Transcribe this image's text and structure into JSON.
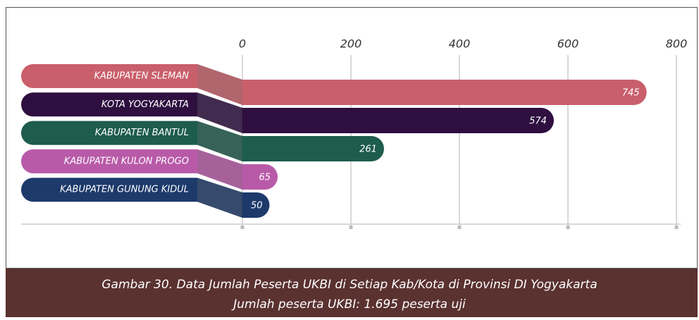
{
  "chart_data": {
    "type": "bar",
    "orientation": "horizontal",
    "categories": [
      "KABUPATEN SLEMAN",
      "KOTA YOGYAKARTA",
      "KABUPATEN BANTUL",
      "KABUPATEN KULON PROGO",
      "KABUPATEN GUNUNG KIDUL"
    ],
    "values": [
      745,
      574,
      261,
      65,
      50
    ],
    "colors": [
      "#c95f6b",
      "#2e0f3f",
      "#1e5c4e",
      "#b85aa8",
      "#1d3a6b"
    ],
    "xlim": [
      0,
      800
    ],
    "xticks": [
      0,
      200,
      400,
      600,
      800
    ],
    "grid": true,
    "caption": [
      "Gambar 30. Data Jumlah Peserta UKBI di Setiap Kab/Kota di Provinsi DI Yogyakarta",
      "Jumlah peserta UKBI: 1.695 peserta uji"
    ]
  }
}
